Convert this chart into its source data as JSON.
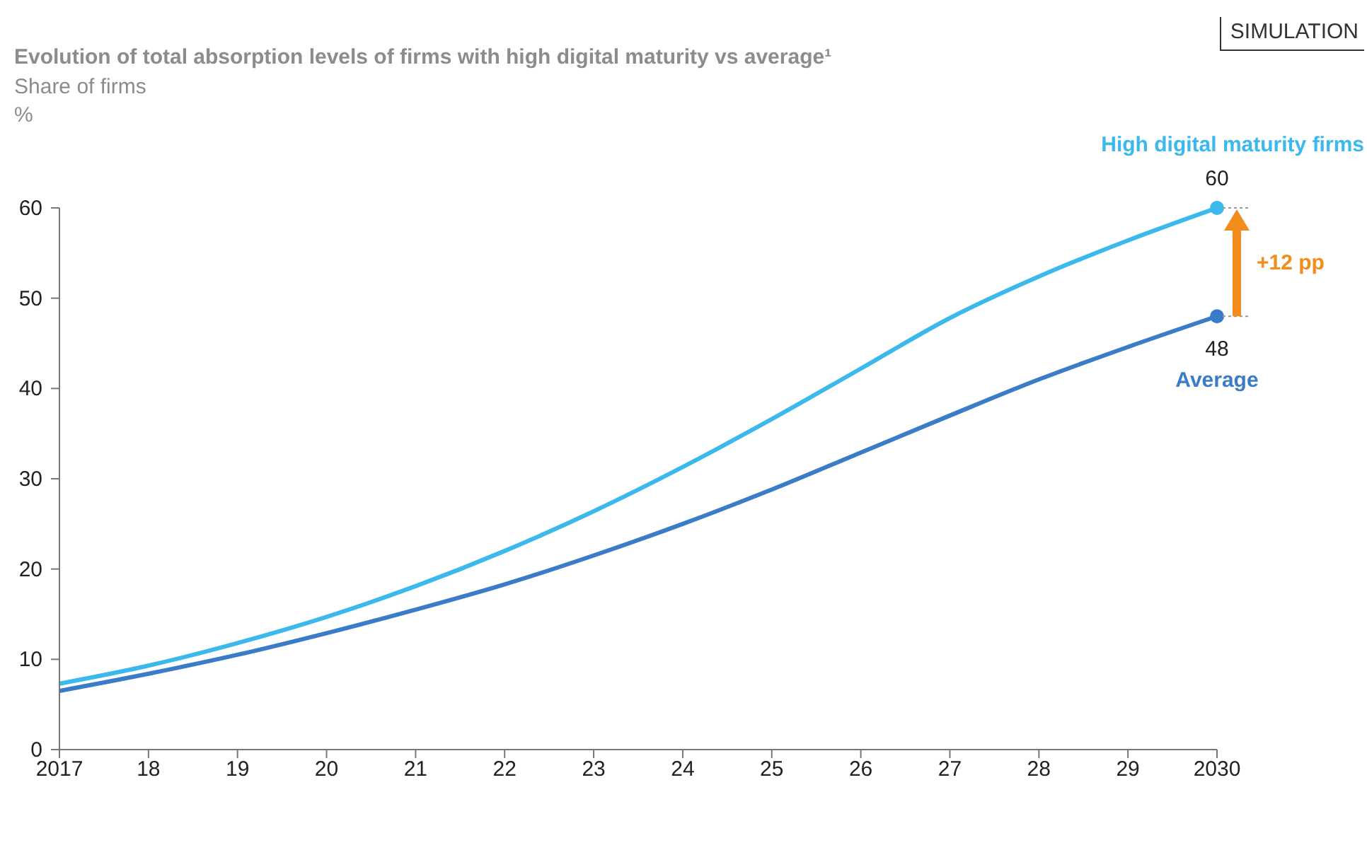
{
  "chart_data": {
    "type": "line",
    "title": "Evolution of total absorption levels of firms with high digital maturity vs average¹",
    "subtitle": "Share of firms",
    "ylabel": "%",
    "x": [
      2017,
      2018,
      2019,
      2020,
      2021,
      2022,
      2023,
      2024,
      2025,
      2026,
      2027,
      2028,
      2029,
      2030
    ],
    "xlim": [
      2017,
      2030
    ],
    "xticks": [
      2017,
      {
        "value": 2018,
        "label": "18"
      },
      {
        "value": 2019,
        "label": "19"
      },
      {
        "value": 2020,
        "label": "20"
      },
      {
        "value": 2021,
        "label": "21"
      },
      {
        "value": 2022,
        "label": "22"
      },
      {
        "value": 2023,
        "label": "23"
      },
      {
        "value": 2024,
        "label": "24"
      },
      {
        "value": 2025,
        "label": "25"
      },
      {
        "value": 2026,
        "label": "26"
      },
      {
        "value": 2027,
        "label": "27"
      },
      {
        "value": 2028,
        "label": "28"
      },
      {
        "value": 2029,
        "label": "29"
      },
      2030
    ],
    "ylim": [
      0,
      60
    ],
    "yticks": [
      0,
      10,
      20,
      30,
      40,
      50,
      60
    ],
    "series": [
      {
        "name": "High digital maturity firms",
        "color": "#3bb8ec",
        "values": [
          7.3,
          9.3,
          11.8,
          14.7,
          18.1,
          22,
          26.4,
          31.3,
          36.6,
          42.2,
          47.8,
          52.4,
          56.4,
          60
        ],
        "value_labels": [
          null,
          null,
          null,
          null,
          null,
          null,
          null,
          null,
          null,
          null,
          null,
          null,
          null,
          "60"
        ]
      },
      {
        "name": "Average",
        "color": "#3a7cc7",
        "values": [
          6.5,
          8.4,
          10.5,
          12.9,
          15.5,
          18.3,
          21.5,
          25,
          28.8,
          32.9,
          37,
          41,
          44.6,
          48
        ],
        "value_labels": [
          null,
          null,
          null,
          null,
          null,
          null,
          null,
          null,
          null,
          null,
          null,
          null,
          null,
          "48"
        ]
      }
    ],
    "annotations": [
      "SIMULATION",
      "+12 pp"
    ],
    "grid": false,
    "legend": false,
    "marker": "none",
    "line_style": "solid"
  }
}
